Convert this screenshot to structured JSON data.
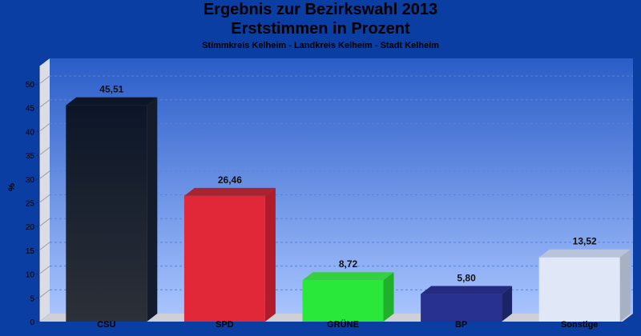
{
  "chart_data": {
    "type": "bar",
    "title_line1": "Ergebnis zur Bezirkswahl 2013",
    "title_line2": "Erststimmen in Prozent",
    "subtitle": "Stimmkreis Kelheim - Landkreis Kelheim - Stadt Kelheim",
    "xlabel": "",
    "ylabel": "%",
    "ylim": [
      0,
      53
    ],
    "yticks": [
      "0",
      "5",
      "10",
      "15",
      "20",
      "25",
      "30",
      "35",
      "40",
      "45",
      "50"
    ],
    "grid": true,
    "bar_style": "3d",
    "categories": [
      "CSU",
      "SPD",
      "GRÜNE",
      "BP",
      "Sonstige"
    ],
    "values": [
      45.51,
      26.46,
      8.72,
      5.8,
      13.52
    ],
    "value_labels": [
      "45,51",
      "26,46",
      "8,72",
      "5,80",
      "13,52"
    ],
    "colors": [
      "#1a2030",
      "#e02838",
      "#2ae83a",
      "#283090",
      "#e0e8f8"
    ]
  },
  "colors": {
    "background": "#0a3ea3",
    "plot_top": "#2a5dc8",
    "plot_bottom": "#a8c4ff",
    "wall": "#d8d8e0",
    "floor": "#c8c8d0"
  }
}
